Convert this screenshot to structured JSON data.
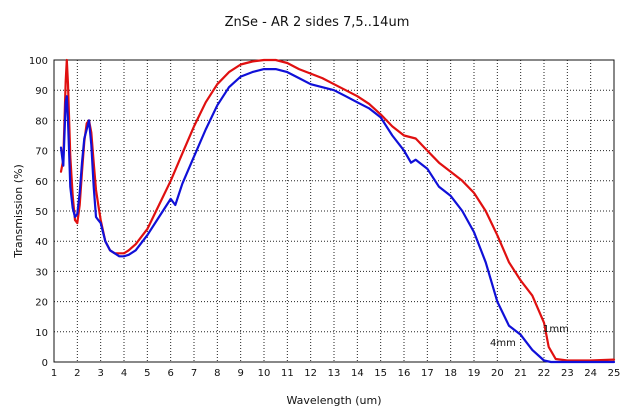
{
  "chart_data": {
    "type": "line",
    "title": "ZnSe - AR 2 sides 7,5..14um",
    "xlabel": "Wavelength (um)",
    "ylabel": "Transmission (%)",
    "xlim": [
      1,
      25
    ],
    "ylim": [
      0,
      100
    ],
    "xticks": [
      "1",
      "2",
      "3",
      "4",
      "5",
      "6",
      "7",
      "8",
      "9",
      "10",
      "11",
      "12",
      "13",
      "14",
      "15",
      "16",
      "17",
      "18",
      "19",
      "20",
      "21",
      "22",
      "23",
      "24",
      "25"
    ],
    "yticks": [
      "0",
      "10",
      "20",
      "30",
      "40",
      "50",
      "60",
      "70",
      "80",
      "90",
      "100"
    ],
    "grid": "dotted",
    "series": [
      {
        "name": "1mm",
        "color": "#e01010",
        "x": [
          1.3,
          1.4,
          1.5,
          1.55,
          1.6,
          1.7,
          1.8,
          1.9,
          2.0,
          2.1,
          2.2,
          2.3,
          2.4,
          2.5,
          2.6,
          2.7,
          2.8,
          2.9,
          3.0,
          3.2,
          3.4,
          3.6,
          3.8,
          4.0,
          4.2,
          4.5,
          5.0,
          5.5,
          6.0,
          6.5,
          7.0,
          7.5,
          8.0,
          8.5,
          9.0,
          9.5,
          10.0,
          10.5,
          11.0,
          11.5,
          12.0,
          12.5,
          13.0,
          13.5,
          14.0,
          14.5,
          15.0,
          15.5,
          16.0,
          16.5,
          17.0,
          17.5,
          18.0,
          18.5,
          19.0,
          19.5,
          20.0,
          20.5,
          21.0,
          21.5,
          22.0,
          22.2,
          22.5,
          23.0,
          24.0,
          25.0
        ],
        "y": [
          63,
          67,
          93,
          100,
          92,
          68,
          55,
          47,
          46,
          52,
          63,
          73,
          79,
          80,
          76,
          66,
          57,
          52,
          47,
          40,
          37,
          36,
          36,
          36,
          37,
          39,
          44,
          52,
          60,
          69,
          78,
          86,
          92,
          96,
          98.5,
          99.5,
          100,
          100,
          99,
          97,
          95.5,
          94,
          92,
          90,
          88,
          85.5,
          82,
          78,
          75,
          74,
          70,
          66,
          63,
          60,
          56,
          50,
          42,
          33,
          27,
          22,
          13,
          5,
          1,
          0.5,
          0.5,
          0.8
        ]
      },
      {
        "name": "4mm",
        "color": "#1010d8",
        "x": [
          1.3,
          1.4,
          1.5,
          1.55,
          1.6,
          1.7,
          1.8,
          1.9,
          2.0,
          2.1,
          2.2,
          2.3,
          2.4,
          2.5,
          2.6,
          2.7,
          2.8,
          2.9,
          3.0,
          3.2,
          3.4,
          3.6,
          3.8,
          4.0,
          4.2,
          4.5,
          5.0,
          5.5,
          6.0,
          6.2,
          6.5,
          7.0,
          7.5,
          8.0,
          8.5,
          9.0,
          9.5,
          10.0,
          10.5,
          11.0,
          11.5,
          12.0,
          12.5,
          13.0,
          13.5,
          14.0,
          14.5,
          15.0,
          15.5,
          16.0,
          16.3,
          16.5,
          17.0,
          17.5,
          18.0,
          18.5,
          19.0,
          19.5,
          20.0,
          20.5,
          21.0,
          21.5,
          22.0,
          22.3,
          23.0,
          24.0,
          25.0
        ],
        "y": [
          71,
          65,
          86,
          88,
          80,
          58,
          51,
          48,
          49,
          56,
          66,
          74,
          77,
          80,
          72,
          58,
          48,
          47,
          46,
          40,
          37,
          36,
          35,
          35,
          35.5,
          37,
          42,
          48,
          54,
          52,
          59,
          68,
          77,
          85,
          91,
          94.5,
          96,
          97,
          97,
          96,
          94,
          92,
          91,
          90,
          88,
          86,
          84,
          81,
          75,
          70,
          66,
          67,
          64,
          58,
          55,
          50,
          43,
          33,
          20,
          12,
          9,
          4,
          0.5,
          0,
          0,
          0,
          0
        ]
      }
    ]
  }
}
